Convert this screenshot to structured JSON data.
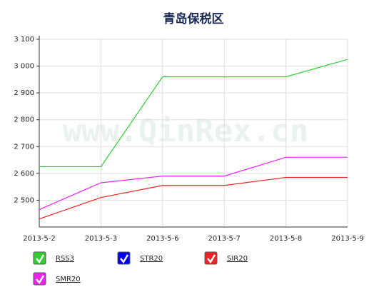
{
  "chart_data": {
    "type": "line",
    "title": "青岛保税区",
    "watermark": "www.QinRex.cn",
    "categories": [
      "2013-5-2",
      "2013-5-3",
      "2013-5-6",
      "2013-5-7",
      "2013-5-8",
      "2013-5-9"
    ],
    "series": [
      {
        "name": "RSS3",
        "color": "#33cc33",
        "values": [
          2625,
          2625,
          2960,
          2960,
          2960,
          3025
        ]
      },
      {
        "name": "STR20",
        "color": "#0000ee",
        "values": [
          null,
          null,
          null,
          null,
          null,
          null
        ]
      },
      {
        "name": "SIR20",
        "color": "#ee2222",
        "values": [
          2430,
          2510,
          2555,
          2555,
          2585,
          2585
        ]
      },
      {
        "name": "SMR20",
        "color": "#ee22ee",
        "values": [
          2465,
          2565,
          2590,
          2590,
          2660,
          2660
        ]
      }
    ],
    "ylim": [
      2400,
      3100
    ],
    "yticks": [
      {
        "value": 2500,
        "label": "2 500"
      },
      {
        "value": 2600,
        "label": "2 600"
      },
      {
        "value": 2700,
        "label": "2 700"
      },
      {
        "value": 2800,
        "label": "2 800"
      },
      {
        "value": 2900,
        "label": "2 900"
      },
      {
        "value": 3000,
        "label": "3 000"
      },
      {
        "value": 3100,
        "label": "3 100"
      }
    ],
    "grid": true
  }
}
